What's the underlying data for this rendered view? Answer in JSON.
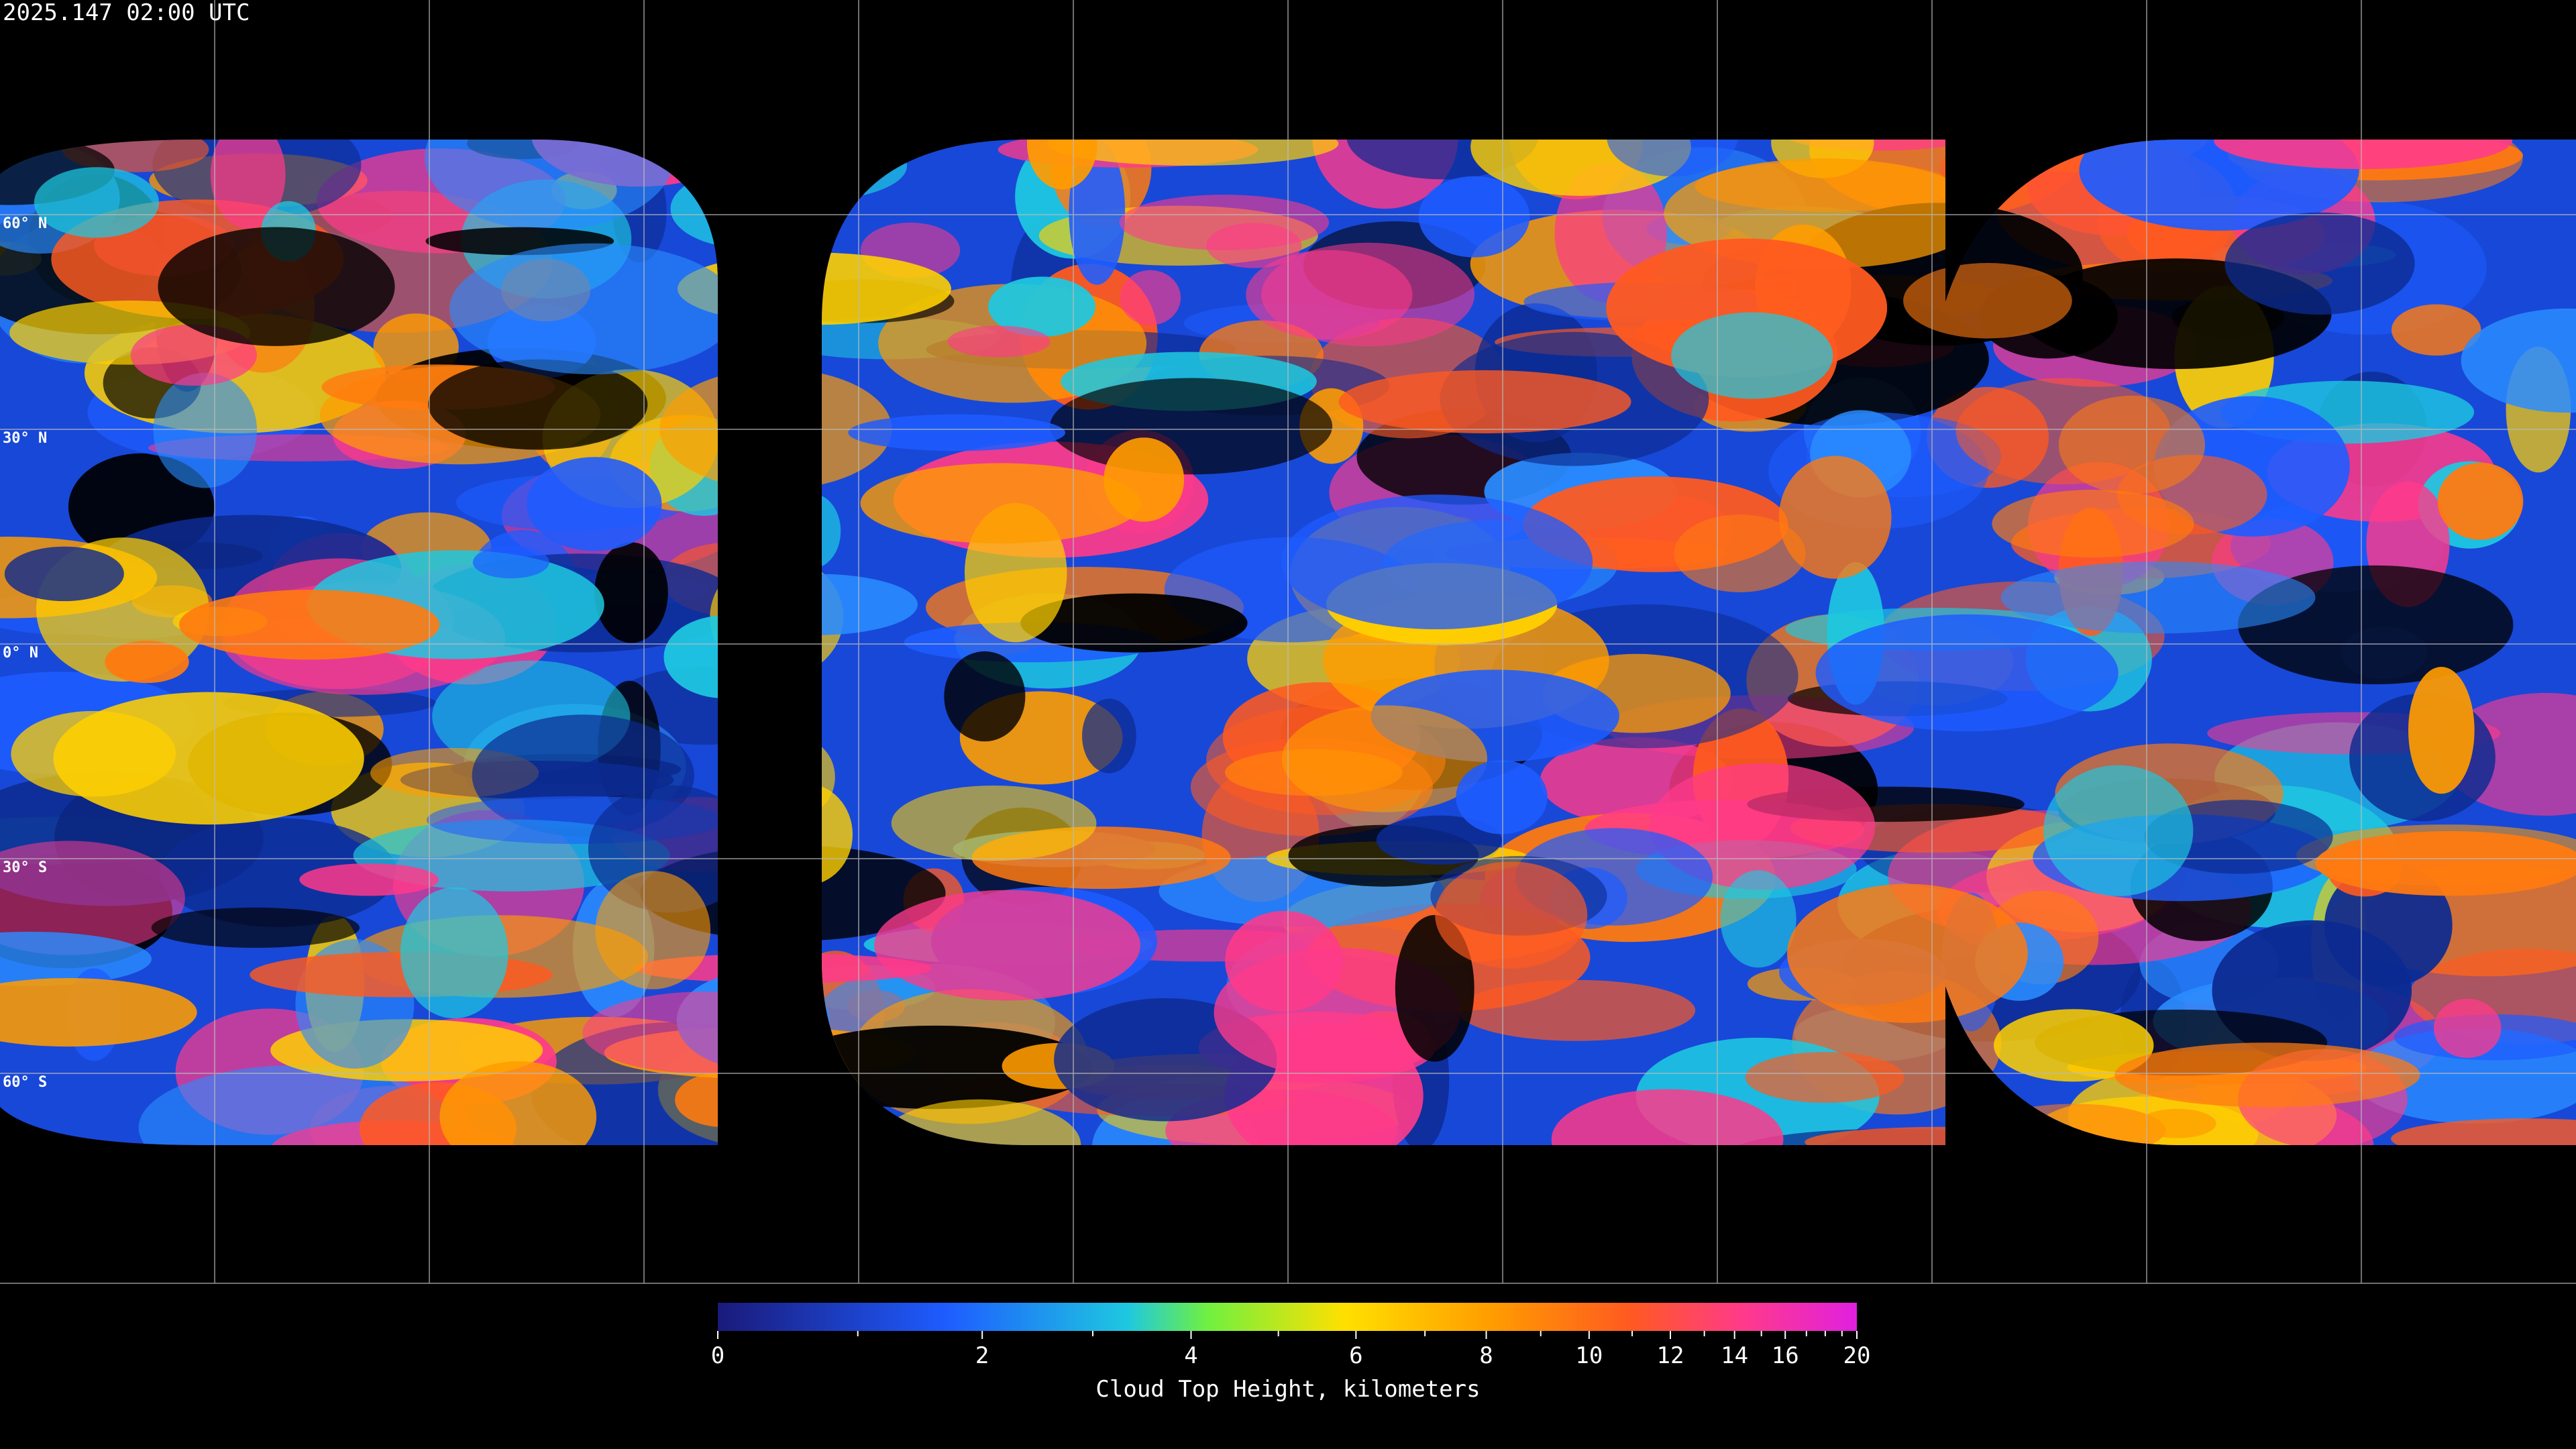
{
  "timestamp": "2025.147 02:00 UTC",
  "map": {
    "lat_labels": [
      "60° N",
      "30° N",
      "0° N",
      "30° S",
      "60° S"
    ]
  },
  "colorbar": {
    "label": "Cloud Top Height, kilometers",
    "lim": [
      0,
      20
    ],
    "ticks": [
      0,
      2,
      4,
      6,
      8,
      10,
      12,
      14,
      16,
      20
    ],
    "minor_ticks": [
      1,
      3,
      5,
      7,
      9,
      11,
      13,
      15,
      17,
      18,
      19
    ]
  }
}
